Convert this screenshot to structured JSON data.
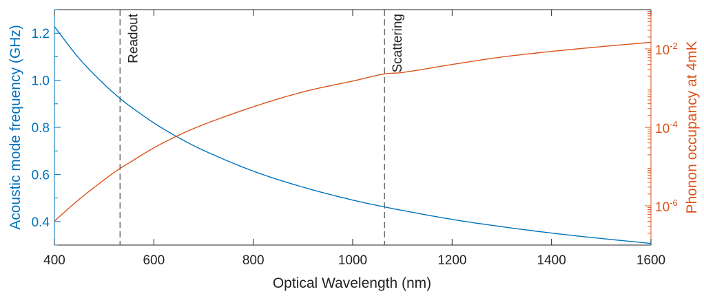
{
  "chart_data": {
    "type": "line",
    "title": "",
    "xlabel": "Optical Wavelength (nm)",
    "xlim": [
      400,
      1600
    ],
    "x_ticks": [
      400,
      600,
      800,
      1000,
      1200,
      1400,
      1600
    ],
    "x_tick_labels": [
      "400",
      "600",
      "800",
      "1000",
      "1200",
      "1400",
      "1600"
    ],
    "y_left": {
      "label": "Acoustic mode frequency (GHz)",
      "lim": [
        0.3,
        1.3
      ],
      "ticks": [
        0.4,
        0.6,
        0.8,
        1.0,
        1.2
      ],
      "tick_labels": [
        "0.4",
        "0.6",
        "0.8",
        "1.0",
        "1.2"
      ],
      "color": "#0072BD"
    },
    "y_right": {
      "label": "Phonon occupancy at 4mK",
      "scale": "log",
      "lim": [
        1e-07,
        0.1
      ],
      "ticks": [
        1e-06,
        0.0001,
        0.01
      ],
      "tick_labels": [
        {
          "base": "10",
          "exp": "-6"
        },
        {
          "base": "10",
          "exp": "-4"
        },
        {
          "base": "10",
          "exp": "-2"
        }
      ],
      "color": "#D95319"
    },
    "series": [
      {
        "axis": "left",
        "color": "#0072BD",
        "x": [
          400,
          450,
          500,
          532,
          550,
          600,
          650,
          700,
          800,
          900,
          1000,
          1064,
          1100,
          1200,
          1300,
          1400,
          1500,
          1600
        ],
        "values": [
          1.228,
          1.092,
          0.983,
          0.923,
          0.893,
          0.819,
          0.756,
          0.702,
          0.614,
          0.546,
          0.491,
          0.462,
          0.447,
          0.409,
          0.378,
          0.351,
          0.328,
          0.307
        ]
      },
      {
        "axis": "right",
        "color": "#D95319",
        "x": [
          400,
          450,
          500,
          532,
          550,
          600,
          650,
          700,
          800,
          900,
          1000,
          1064,
          1100,
          1200,
          1300,
          1400,
          1500,
          1600
        ],
        "values": [
          4.1e-07,
          1.47e-06,
          4.6e-06,
          9e-06,
          1.24e-05,
          3e-05,
          6.3e-05,
          0.000118,
          0.000334,
          0.0008,
          0.00151,
          0.0023,
          0.0025,
          0.004,
          0.0062,
          0.0086,
          0.0114,
          0.0147
        ]
      }
    ],
    "vlines": [
      {
        "x": 532,
        "label": "Readout"
      },
      {
        "x": 1064,
        "label": "Scattering"
      }
    ],
    "grid": false,
    "legend": "none"
  }
}
